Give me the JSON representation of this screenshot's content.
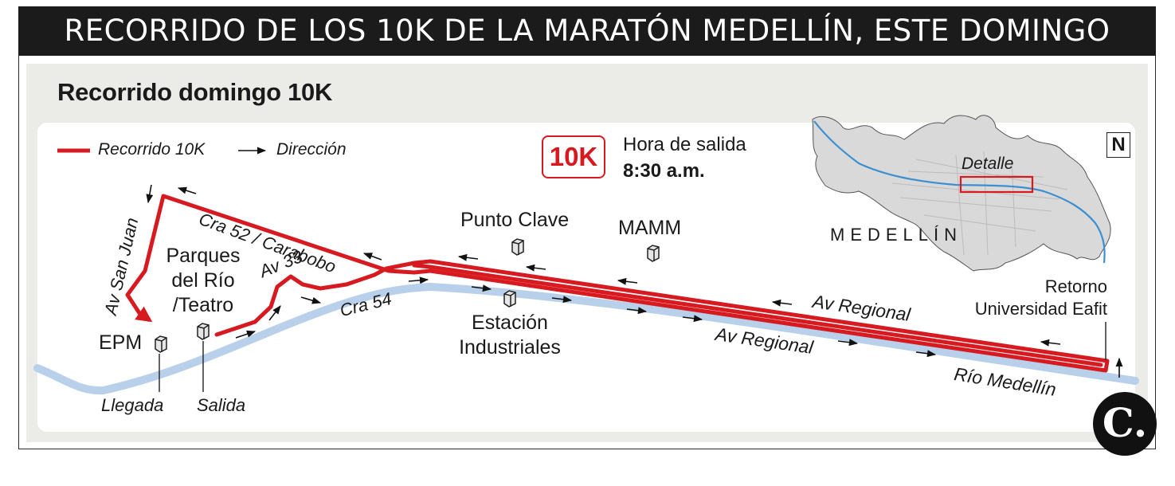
{
  "header": {
    "title": "RECORRIDO DE LOS 10K DE LA MARATÓN MEDELLÍN, ESTE DOMINGO"
  },
  "map": {
    "subtitle": "Recorrido domingo 10K",
    "legend": {
      "route_label": "Recorrido 10K",
      "direction_label": "Dirección",
      "route_color": "#d71920"
    },
    "badge": {
      "label": "10K",
      "start_time_label": "Hora de salida",
      "start_time": "8:30 a.m."
    },
    "inset": {
      "city_label": "MEDELLÍN",
      "detail_label": "Detalle",
      "north_label": "N"
    },
    "streets": {
      "cra52": "Cra 52 / Carabobo",
      "av_san_juan": "Av San Juan",
      "av33": "Av 33",
      "cra54": "Cra 54",
      "av_regional_north": "Av Regional",
      "av_regional_south": "Av Regional",
      "rio": "Río Medellín"
    },
    "places": {
      "parques": "Parques\ndel Río\n/Teatro",
      "epm": "EPM",
      "punto_clave": "Punto Clave",
      "mamm": "MAMM",
      "estacion": "Estación\nIndustriales",
      "retorno": "Retorno\nUniversidad Eafit"
    },
    "markers": {
      "llegada": "Llegada",
      "salida": "Salida"
    },
    "colors": {
      "river": "#b8d0ea",
      "inset_fill": "#d9d9d9",
      "inset_river": "#3c8fd0"
    }
  },
  "brand": {
    "logo_letter": "C."
  }
}
